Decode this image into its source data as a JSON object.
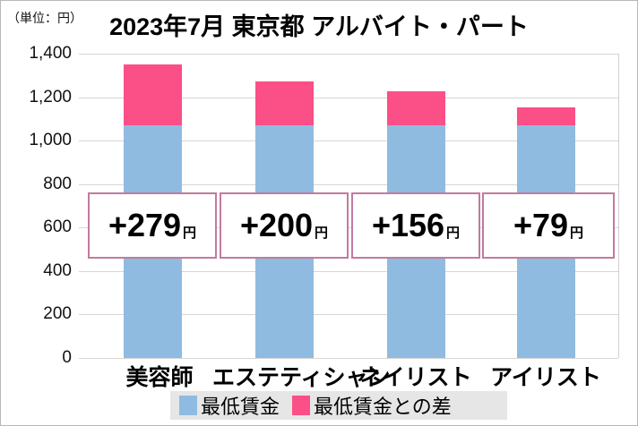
{
  "chart_data": {
    "type": "bar",
    "stacked": true,
    "title": "2023年7月 東京都 アルバイト・パート",
    "unit_label": "（単位：円）",
    "xlabel": "",
    "ylabel": "",
    "ylim": [
      0,
      1400
    ],
    "yticks": [
      "0",
      "200",
      "400",
      "600",
      "800",
      "1,000",
      "1,200",
      "1,400"
    ],
    "grid": true,
    "legend_position": "bottom",
    "categories": [
      "美容師",
      "エステティシャン",
      "ネイリスト",
      "アイリスト"
    ],
    "series": [
      {
        "name": "最低賃金",
        "color": "#8fbbe0",
        "values": [
          1072,
          1072,
          1072,
          1072
        ]
      },
      {
        "name": "最低賃金との差",
        "color": "#fa4f87",
        "values": [
          279,
          200,
          156,
          79
        ]
      }
    ],
    "annotations": [
      {
        "category": "美容師",
        "text": "+279",
        "suffix": "円"
      },
      {
        "category": "エステティシャン",
        "text": "+200",
        "suffix": "円"
      },
      {
        "category": "ネイリスト",
        "text": "+156",
        "suffix": "円"
      },
      {
        "category": "アイリスト",
        "text": "+79",
        "suffix": "円"
      }
    ]
  }
}
